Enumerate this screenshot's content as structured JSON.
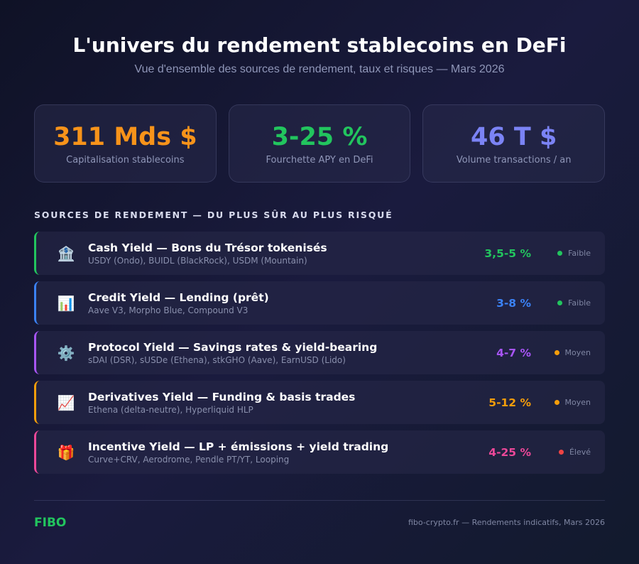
{
  "header": {
    "title": "L'univers du rendement stablecoins en DeFi",
    "subtitle": "Vue d'ensemble des sources de rendement, taux et risques — Mars 2026"
  },
  "stats": [
    {
      "value": "311 Mds $",
      "label": "Capitalisation stablecoins",
      "color": "#f7931a"
    },
    {
      "value": "3-25 %",
      "label": "Fourchette APY en DeFi",
      "color": "#22c55e"
    },
    {
      "value": "46 T $",
      "label": "Volume transactions / an",
      "color": "#7b83f5"
    }
  ],
  "section": {
    "title": "SOURCES DE RENDEMENT — DU PLUS SÛR AU PLUS RISQUÉ"
  },
  "sources": [
    {
      "icon": "bank-icon",
      "glyph": "🏦",
      "title": "Cash Yield — Bons du Trésor tokenisés",
      "subtitle": "USDY (Ondo), BUIDL (BlackRock), USDM (Mountain)",
      "rate": "3,5-5 %",
      "risk": "Faible",
      "accent": "#22c55e",
      "rate_color": "#22c55e",
      "risk_color": "#22c55e"
    },
    {
      "icon": "bar-chart-icon",
      "glyph": "📊",
      "title": "Credit Yield — Lending (prêt)",
      "subtitle": "Aave V3, Morpho Blue, Compound V3",
      "rate": "3-8 %",
      "risk": "Faible",
      "accent": "#3b82f6",
      "rate_color": "#3b82f6",
      "risk_color": "#22c55e"
    },
    {
      "icon": "gear-icon",
      "glyph": "⚙️",
      "title": "Protocol Yield — Savings rates & yield-bearing",
      "subtitle": "sDAI (DSR), sUSDe (Ethena), stkGHO (Aave), EarnUSD (Lido)",
      "rate": "4-7 %",
      "risk": "Moyen",
      "accent": "#a855f7",
      "rate_color": "#a855f7",
      "risk_color": "#f59e0b"
    },
    {
      "icon": "trending-up-chart-icon",
      "glyph": "📈",
      "title": "Derivatives Yield — Funding & basis trades",
      "subtitle": "Ethena (delta-neutre), Hyperliquid HLP",
      "rate": "5-12 %",
      "risk": "Moyen",
      "accent": "#f59e0b",
      "rate_color": "#f59e0b",
      "risk_color": "#f59e0b"
    },
    {
      "icon": "gift-icon",
      "glyph": "🎁",
      "title": "Incentive Yield — LP + émissions + yield trading",
      "subtitle": "Curve+CRV, Aerodrome, Pendle PT/YT, Looping",
      "rate": "4-25 %",
      "risk": "Élevé",
      "accent": "#ec4899",
      "rate_color": "#ec4899",
      "risk_color": "#ef4444"
    }
  ],
  "footer": {
    "logo": "FIBO",
    "note": "fibo-crypto.fr — Rendements indicatifs, Mars 2026"
  }
}
